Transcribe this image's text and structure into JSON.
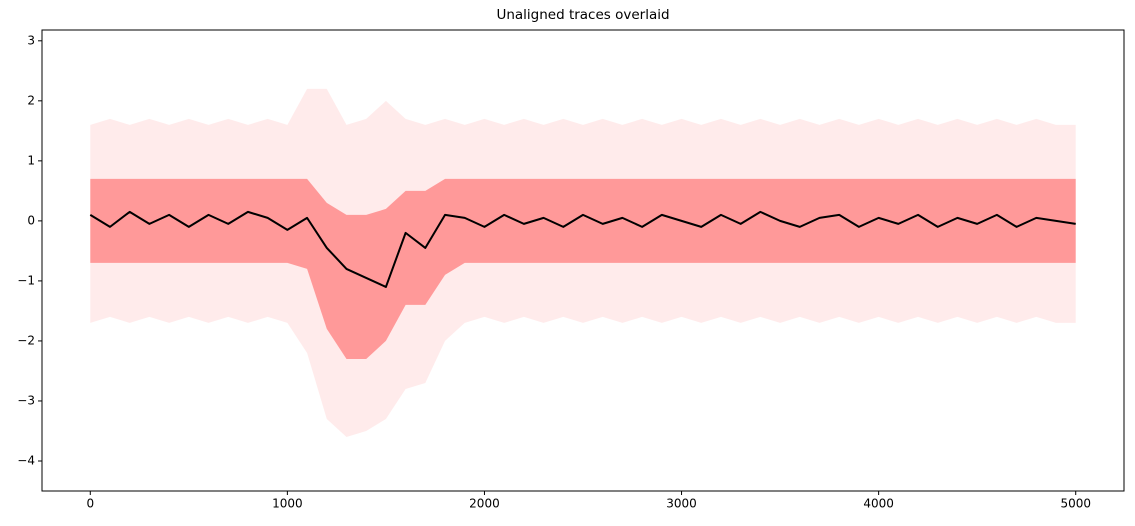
{
  "chart_data": {
    "type": "line",
    "title": "Unaligned traces overlaid",
    "x": [
      0,
      100,
      200,
      300,
      400,
      500,
      600,
      700,
      800,
      900,
      1000,
      1100,
      1200,
      1300,
      1400,
      1500,
      1600,
      1700,
      1800,
      1900,
      2000,
      2100,
      2200,
      2300,
      2400,
      2500,
      2600,
      2700,
      2800,
      2900,
      3000,
      3100,
      3200,
      3300,
      3400,
      3500,
      3600,
      3700,
      3800,
      3900,
      4000,
      4100,
      4200,
      4300,
      4400,
      4500,
      4600,
      4700,
      4800,
      4900,
      5000
    ],
    "series": [
      {
        "color": "#000000",
        "values": [
          0.1,
          -0.1,
          0.15,
          -0.05,
          0.1,
          -0.1,
          0.1,
          -0.05,
          0.15,
          0.05,
          -0.15,
          0.05,
          -0.45,
          -0.8,
          -0.95,
          -1.1,
          -0.2,
          -0.45,
          0.1,
          0.05,
          -0.1,
          0.1,
          -0.05,
          0.05,
          -0.1,
          0.1,
          -0.05,
          0.05,
          -0.1,
          0.1,
          0,
          -0.1,
          0.1,
          -0.05,
          0.15,
          0,
          -0.1,
          0.05,
          0.1,
          -0.1,
          0.05,
          -0.05,
          0.1,
          -0.1,
          0.05,
          -0.05,
          0.1,
          -0.1,
          0.05,
          0,
          -0.05
        ]
      }
    ],
    "bands": [
      {
        "color": "#ff0000",
        "opacity": 0.08,
        "upper": [
          1.6,
          1.7,
          1.6,
          1.7,
          1.6,
          1.7,
          1.6,
          1.7,
          1.6,
          1.7,
          1.6,
          2.2,
          2.2,
          1.6,
          1.7,
          2.0,
          1.7,
          1.6,
          1.7,
          1.6,
          1.7,
          1.6,
          1.7,
          1.6,
          1.7,
          1.6,
          1.7,
          1.6,
          1.7,
          1.6,
          1.7,
          1.6,
          1.7,
          1.6,
          1.7,
          1.6,
          1.7,
          1.6,
          1.7,
          1.6,
          1.7,
          1.6,
          1.7,
          1.6,
          1.7,
          1.6,
          1.7,
          1.6,
          1.7,
          1.6,
          1.6
        ],
        "lower": [
          -1.7,
          -1.6,
          -1.7,
          -1.6,
          -1.7,
          -1.6,
          -1.7,
          -1.6,
          -1.7,
          -1.6,
          -1.7,
          -2.2,
          -3.3,
          -3.6,
          -3.5,
          -3.3,
          -2.8,
          -2.7,
          -2.0,
          -1.7,
          -1.6,
          -1.7,
          -1.6,
          -1.7,
          -1.6,
          -1.7,
          -1.6,
          -1.7,
          -1.6,
          -1.7,
          -1.6,
          -1.7,
          -1.6,
          -1.7,
          -1.6,
          -1.7,
          -1.6,
          -1.7,
          -1.6,
          -1.7,
          -1.6,
          -1.7,
          -1.6,
          -1.7,
          -1.6,
          -1.7,
          -1.6,
          -1.7,
          -1.6,
          -1.7,
          -1.7
        ]
      },
      {
        "color": "#ff0000",
        "opacity": 0.35,
        "upper": [
          0.7,
          0.7,
          0.7,
          0.7,
          0.7,
          0.7,
          0.7,
          0.7,
          0.7,
          0.7,
          0.7,
          0.7,
          0.3,
          0.1,
          0.1,
          0.2,
          0.5,
          0.5,
          0.7,
          0.7,
          0.7,
          0.7,
          0.7,
          0.7,
          0.7,
          0.7,
          0.7,
          0.7,
          0.7,
          0.7,
          0.7,
          0.7,
          0.7,
          0.7,
          0.7,
          0.7,
          0.7,
          0.7,
          0.7,
          0.7,
          0.7,
          0.7,
          0.7,
          0.7,
          0.7,
          0.7,
          0.7,
          0.7,
          0.7,
          0.7,
          0.7
        ],
        "lower": [
          -0.7,
          -0.7,
          -0.7,
          -0.7,
          -0.7,
          -0.7,
          -0.7,
          -0.7,
          -0.7,
          -0.7,
          -0.7,
          -0.8,
          -1.8,
          -2.3,
          -2.3,
          -2.0,
          -1.4,
          -1.4,
          -0.9,
          -0.7,
          -0.7,
          -0.7,
          -0.7,
          -0.7,
          -0.7,
          -0.7,
          -0.7,
          -0.7,
          -0.7,
          -0.7,
          -0.7,
          -0.7,
          -0.7,
          -0.7,
          -0.7,
          -0.7,
          -0.7,
          -0.7,
          -0.7,
          -0.7,
          -0.7,
          -0.7,
          -0.7,
          -0.7,
          -0.7,
          -0.7,
          -0.7,
          -0.7,
          -0.7,
          -0.7,
          -0.7
        ]
      }
    ],
    "xlim": [
      -245,
      5245
    ],
    "ylim": [
      -4.5,
      3.18
    ],
    "xticks": [
      0,
      1000,
      2000,
      3000,
      4000,
      5000
    ],
    "yticks": [
      {
        "value": -4,
        "label": "−4"
      },
      {
        "value": -3,
        "label": "−3"
      },
      {
        "value": -2,
        "label": "−2"
      },
      {
        "value": -1,
        "label": "−1"
      },
      0,
      1,
      2,
      3
    ]
  }
}
